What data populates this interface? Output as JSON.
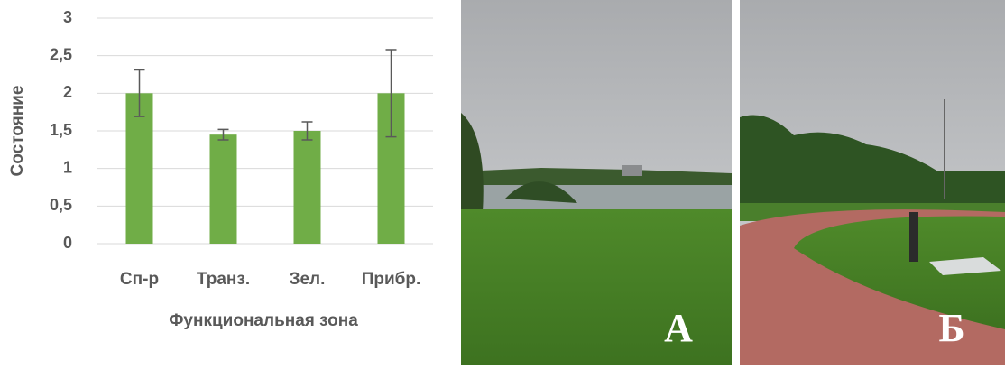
{
  "chart_data": {
    "type": "bar",
    "x_label": "Функциональная зона",
    "y_label": "Состояние",
    "categories": [
      "Сп-р",
      "Транз.",
      "Зел.",
      "Прибр."
    ],
    "values": [
      2,
      1.45,
      1.5,
      2
    ],
    "errors": [
      0.31,
      0.07,
      0.12,
      0.58
    ],
    "color": "#70ad47",
    "error_color": "#595959",
    "ylim": [
      0,
      3
    ],
    "yticks": [
      0,
      {
        "value": 0.5,
        "label": "0,5"
      },
      1,
      {
        "value": 1.5,
        "label": "1,5"
      },
      2,
      {
        "value": 2.5,
        "label": "2,5"
      },
      3
    ],
    "grid": true
  },
  "photos": [
    {
      "label": "А"
    },
    {
      "label": "Б"
    }
  ]
}
